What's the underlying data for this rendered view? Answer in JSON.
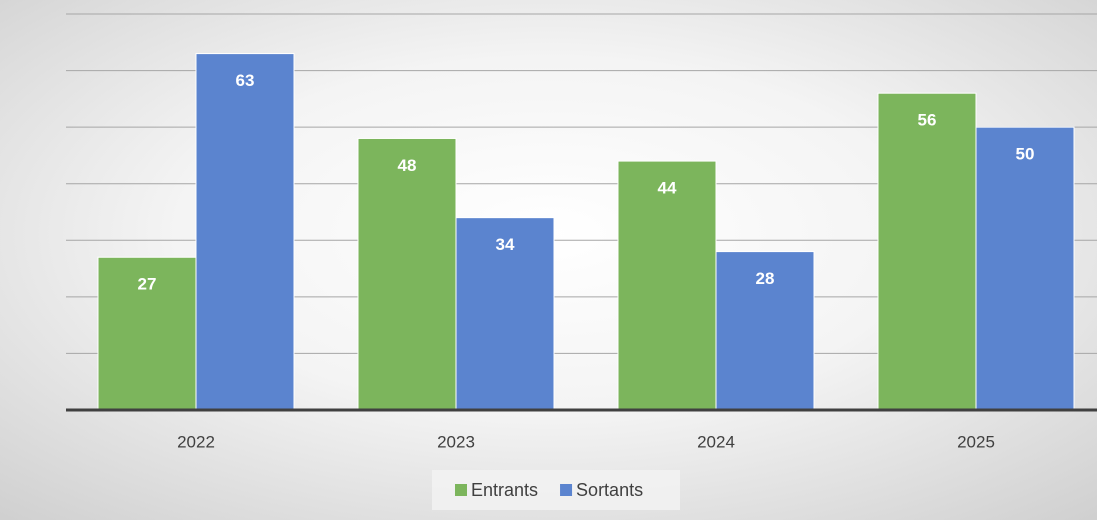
{
  "chart_data": {
    "type": "bar",
    "categories": [
      "2022",
      "2023",
      "2024",
      "2025"
    ],
    "series": [
      {
        "name": "Entrants",
        "color": "#7cb55c",
        "values": [
          27,
          48,
          44,
          56
        ]
      },
      {
        "name": "Sortants",
        "color": "#5b84cf",
        "values": [
          63,
          34,
          28,
          50
        ]
      }
    ],
    "ylim": [
      0,
      70
    ],
    "yticks": [
      0,
      10,
      20,
      30,
      40,
      50,
      60,
      70
    ],
    "grid": true,
    "legend": "bottom"
  }
}
